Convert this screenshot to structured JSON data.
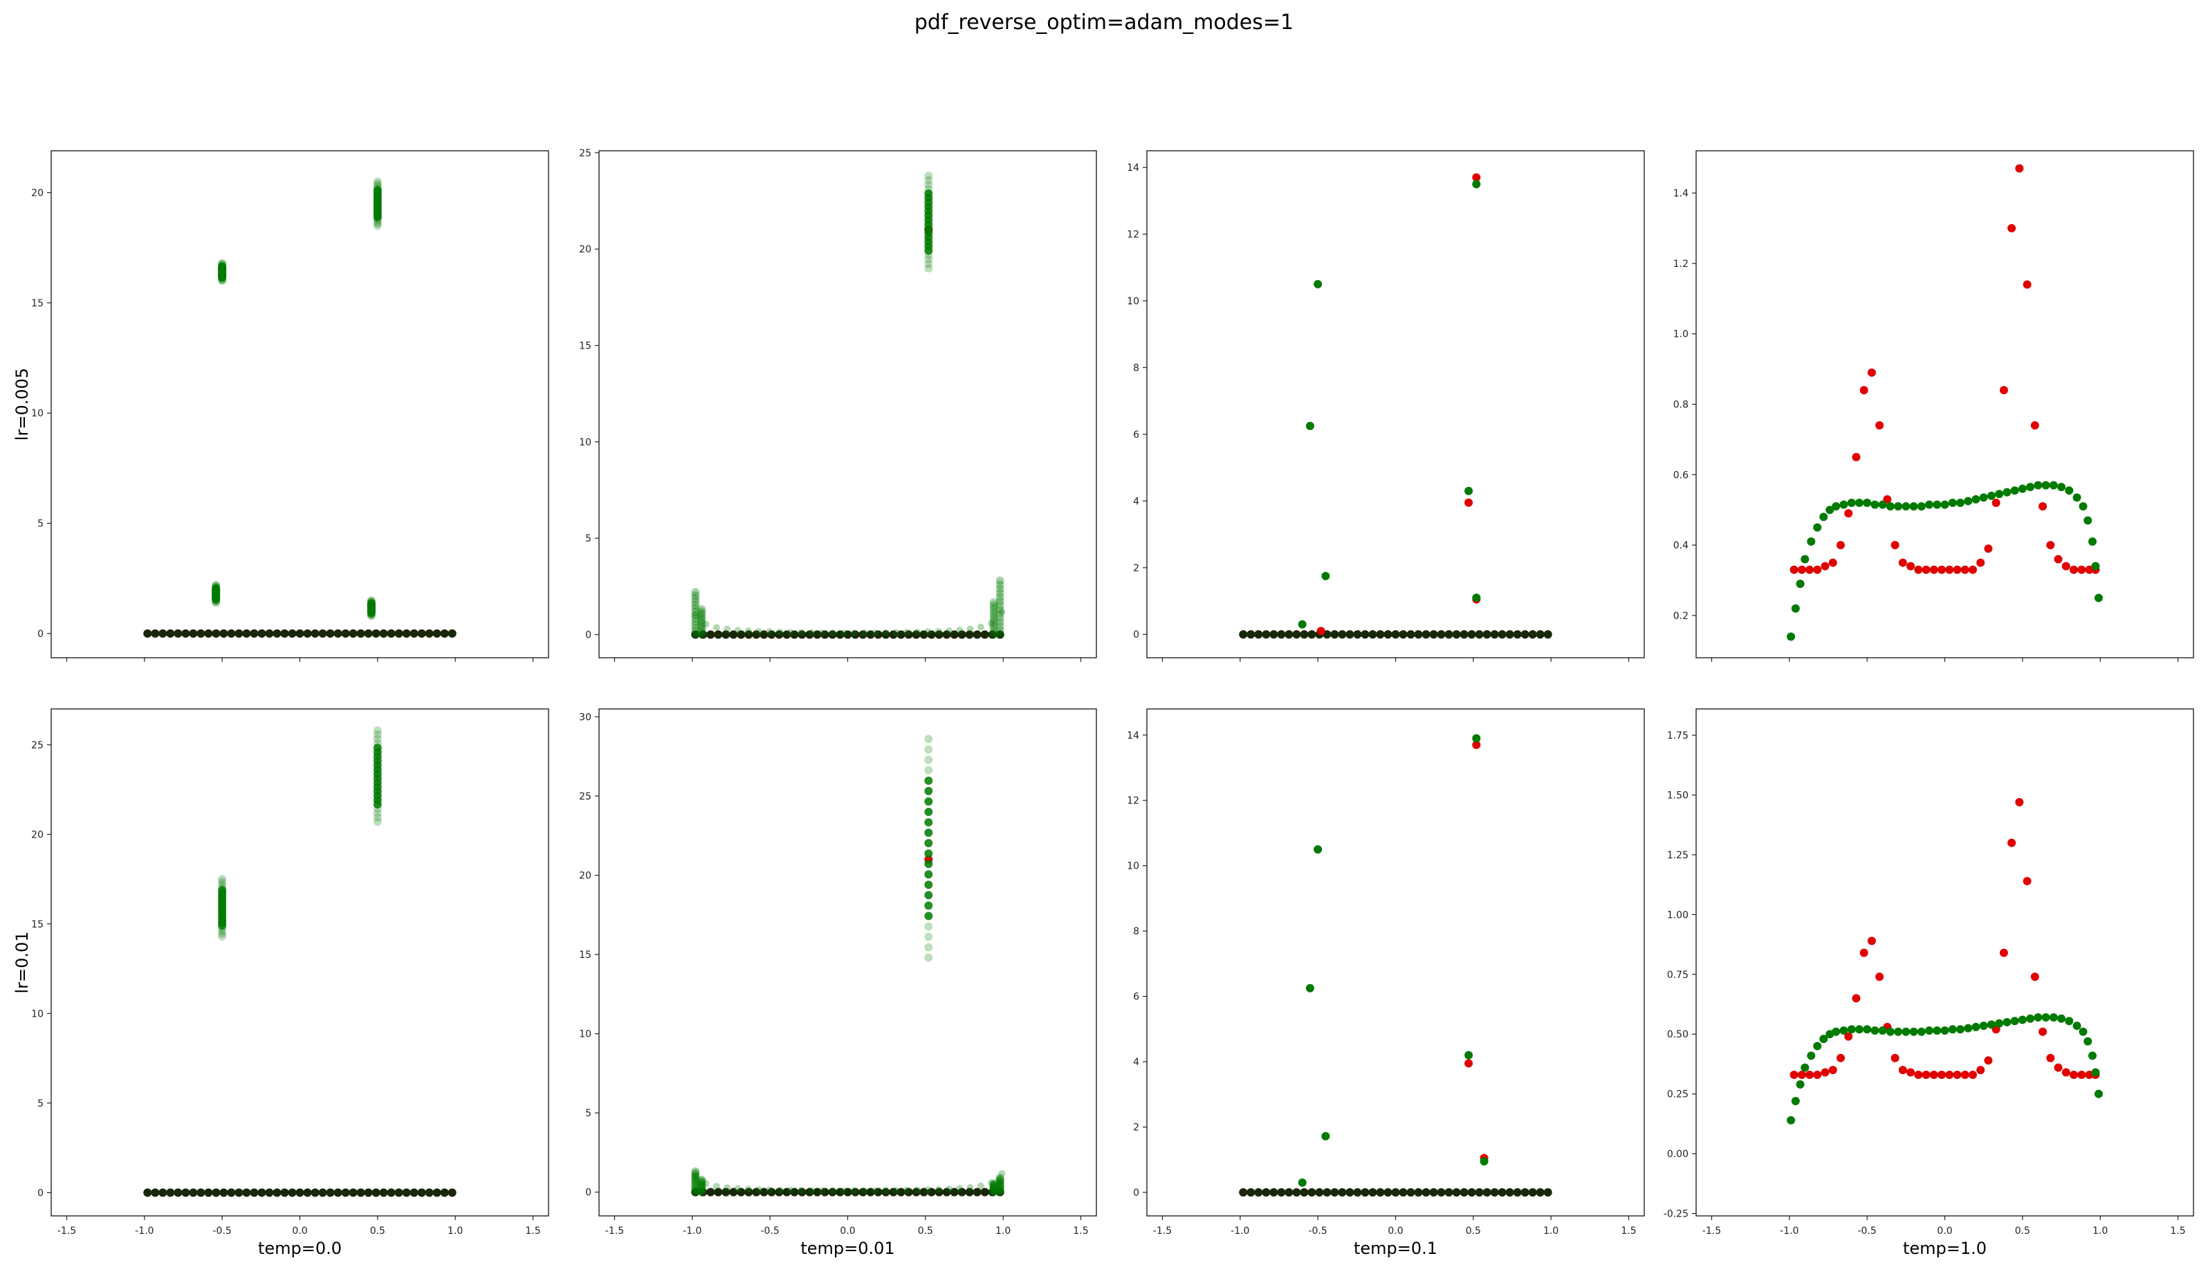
{
  "figure": {
    "suptitle": "pdf_reverse_optim=adam_modes=1"
  },
  "colors": {
    "target": "#e00000",
    "model": "#007a00",
    "dark": "#0b2a0b",
    "faint": "#9fc59f"
  },
  "chart_data": [
    {
      "type": "scatter",
      "row": 0,
      "col": 0,
      "ylabel": "lr=0.005",
      "xlabel": "",
      "xlim": [
        -1.6,
        1.6
      ],
      "ylim": [
        -1.1,
        21.9
      ],
      "xticks": [
        -1.5,
        -1.0,
        -0.5,
        0.0,
        0.5,
        1.0,
        1.5
      ],
      "xtick_labels_shown": false,
      "yticks": [
        0,
        5,
        10,
        15,
        20
      ],
      "ytick_labels": [
        "0",
        "5",
        "10",
        "15",
        "20"
      ],
      "series": [
        {
          "role": "target",
          "baseline": 0.0,
          "x_range": [
            -0.98,
            0.98
          ],
          "n": 41
        },
        {
          "role": "model_clusters",
          "clusters": [
            {
              "x": -0.5,
              "y": [
                16.0,
                16.8
              ]
            },
            {
              "x": 0.5,
              "y": [
                18.5,
                20.5
              ]
            },
            {
              "x": -0.54,
              "y": [
                1.4,
                2.2
              ]
            },
            {
              "x": 0.46,
              "y": [
                0.8,
                1.5
              ]
            }
          ]
        }
      ]
    },
    {
      "type": "scatter",
      "row": 0,
      "col": 1,
      "ylabel": "",
      "xlabel": "",
      "xlim": [
        -1.6,
        1.6
      ],
      "ylim": [
        -1.2,
        25.1
      ],
      "xticks": [
        -1.5,
        -1.0,
        -0.5,
        0.0,
        0.5,
        1.0,
        1.5
      ],
      "xtick_labels_shown": false,
      "yticks": [
        0,
        5,
        10,
        15,
        20,
        25
      ],
      "ytick_labels": [
        "0",
        "5",
        "10",
        "15",
        "20",
        "25"
      ],
      "series": [
        {
          "role": "target",
          "baseline": 0.0,
          "x_range": [
            -0.98,
            0.98
          ],
          "n": 41,
          "spikes": [
            {
              "x": 0.52,
              "y": 21.0
            }
          ]
        },
        {
          "role": "model_clusters",
          "clusters": [
            {
              "x": 0.52,
              "y": [
                19.0,
                23.8
              ]
            }
          ],
          "edge_rise": {
            "left_x": -0.98,
            "left_y": 2.2,
            "right_x": 0.98,
            "right_y": 2.8
          }
        }
      ]
    },
    {
      "type": "scatter",
      "row": 0,
      "col": 2,
      "ylabel": "",
      "xlabel": "",
      "xlim": [
        -1.6,
        1.6
      ],
      "ylim": [
        -0.7,
        14.5
      ],
      "xticks": [
        -1.5,
        -1.0,
        -0.5,
        0.0,
        0.5,
        1.0,
        1.5
      ],
      "xtick_labels_shown": false,
      "yticks": [
        0,
        2,
        4,
        6,
        8,
        10,
        12,
        14
      ],
      "ytick_labels": [
        "0",
        "2",
        "4",
        "6",
        "8",
        "10",
        "12",
        "14"
      ],
      "series": [
        {
          "role": "target",
          "baseline": 0.0,
          "x_range": [
            -0.98,
            0.98
          ],
          "n": 41,
          "spikes": [
            {
              "x": 0.52,
              "y": 13.7
            },
            {
              "x": 0.47,
              "y": 3.95
            },
            {
              "x": 0.52,
              "y": 1.05
            },
            {
              "x": -0.48,
              "y": 0.1
            }
          ]
        },
        {
          "role": "model_points",
          "points": [
            {
              "x": -0.5,
              "y": 10.5
            },
            {
              "x": -0.55,
              "y": 6.25
            },
            {
              "x": -0.45,
              "y": 1.75
            },
            {
              "x": -0.6,
              "y": 0.3
            },
            {
              "x": 0.52,
              "y": 13.5
            },
            {
              "x": 0.47,
              "y": 4.3
            },
            {
              "x": 0.52,
              "y": 1.1
            }
          ]
        }
      ]
    },
    {
      "type": "scatter",
      "row": 0,
      "col": 3,
      "ylabel": "",
      "xlabel": "",
      "xlim": [
        -1.6,
        1.6
      ],
      "ylim": [
        0.08,
        1.52
      ],
      "xticks": [
        -1.5,
        -1.0,
        -0.5,
        0.0,
        0.5,
        1.0,
        1.5
      ],
      "xtick_labels_shown": false,
      "yticks": [
        0.2,
        0.4,
        0.6,
        0.8,
        1.0,
        1.2,
        1.4
      ],
      "ytick_labels": [
        "0.2",
        "0.4",
        "0.6",
        "0.8",
        "1.0",
        "1.2",
        "1.4"
      ],
      "series": [
        {
          "role": "target",
          "points": [
            {
              "x": -0.97,
              "y": 0.33
            },
            {
              "x": -0.92,
              "y": 0.33
            },
            {
              "x": -0.87,
              "y": 0.33
            },
            {
              "x": -0.82,
              "y": 0.33
            },
            {
              "x": -0.77,
              "y": 0.34
            },
            {
              "x": -0.72,
              "y": 0.35
            },
            {
              "x": -0.67,
              "y": 0.4
            },
            {
              "x": -0.62,
              "y": 0.49
            },
            {
              "x": -0.57,
              "y": 0.65
            },
            {
              "x": -0.52,
              "y": 0.84
            },
            {
              "x": -0.47,
              "y": 0.89
            },
            {
              "x": -0.42,
              "y": 0.74
            },
            {
              "x": -0.37,
              "y": 0.53
            },
            {
              "x": -0.32,
              "y": 0.4
            },
            {
              "x": -0.27,
              "y": 0.35
            },
            {
              "x": -0.22,
              "y": 0.34
            },
            {
              "x": -0.17,
              "y": 0.33
            },
            {
              "x": -0.12,
              "y": 0.33
            },
            {
              "x": -0.07,
              "y": 0.33
            },
            {
              "x": -0.02,
              "y": 0.33
            },
            {
              "x": 0.03,
              "y": 0.33
            },
            {
              "x": 0.08,
              "y": 0.33
            },
            {
              "x": 0.13,
              "y": 0.33
            },
            {
              "x": 0.18,
              "y": 0.33
            },
            {
              "x": 0.23,
              "y": 0.35
            },
            {
              "x": 0.28,
              "y": 0.39
            },
            {
              "x": 0.33,
              "y": 0.52
            },
            {
              "x": 0.38,
              "y": 0.84
            },
            {
              "x": 0.43,
              "y": 1.3
            },
            {
              "x": 0.48,
              "y": 1.47
            },
            {
              "x": 0.53,
              "y": 1.14
            },
            {
              "x": 0.58,
              "y": 0.74
            },
            {
              "x": 0.63,
              "y": 0.51
            },
            {
              "x": 0.68,
              "y": 0.4
            },
            {
              "x": 0.73,
              "y": 0.36
            },
            {
              "x": 0.78,
              "y": 0.34
            },
            {
              "x": 0.83,
              "y": 0.33
            },
            {
              "x": 0.88,
              "y": 0.33
            },
            {
              "x": 0.93,
              "y": 0.33
            },
            {
              "x": 0.97,
              "y": 0.33
            }
          ]
        },
        {
          "role": "model",
          "points": [
            {
              "x": -0.99,
              "y": 0.14
            },
            {
              "x": -0.96,
              "y": 0.22
            },
            {
              "x": -0.93,
              "y": 0.29
            },
            {
              "x": -0.9,
              "y": 0.36
            },
            {
              "x": -0.86,
              "y": 0.41
            },
            {
              "x": -0.82,
              "y": 0.45
            },
            {
              "x": -0.78,
              "y": 0.48
            },
            {
              "x": -0.74,
              "y": 0.5
            },
            {
              "x": -0.7,
              "y": 0.51
            },
            {
              "x": -0.65,
              "y": 0.515
            },
            {
              "x": -0.6,
              "y": 0.52
            },
            {
              "x": -0.55,
              "y": 0.52
            },
            {
              "x": -0.5,
              "y": 0.52
            },
            {
              "x": -0.45,
              "y": 0.515
            },
            {
              "x": -0.4,
              "y": 0.515
            },
            {
              "x": -0.35,
              "y": 0.51
            },
            {
              "x": -0.3,
              "y": 0.51
            },
            {
              "x": -0.25,
              "y": 0.51
            },
            {
              "x": -0.2,
              "y": 0.51
            },
            {
              "x": -0.15,
              "y": 0.51
            },
            {
              "x": -0.1,
              "y": 0.515
            },
            {
              "x": -0.05,
              "y": 0.515
            },
            {
              "x": 0.0,
              "y": 0.515
            },
            {
              "x": 0.05,
              "y": 0.52
            },
            {
              "x": 0.1,
              "y": 0.52
            },
            {
              "x": 0.15,
              "y": 0.525
            },
            {
              "x": 0.2,
              "y": 0.53
            },
            {
              "x": 0.25,
              "y": 0.535
            },
            {
              "x": 0.3,
              "y": 0.54
            },
            {
              "x": 0.35,
              "y": 0.545
            },
            {
              "x": 0.4,
              "y": 0.55
            },
            {
              "x": 0.45,
              "y": 0.555
            },
            {
              "x": 0.5,
              "y": 0.56
            },
            {
              "x": 0.55,
              "y": 0.565
            },
            {
              "x": 0.6,
              "y": 0.57
            },
            {
              "x": 0.65,
              "y": 0.57
            },
            {
              "x": 0.7,
              "y": 0.57
            },
            {
              "x": 0.75,
              "y": 0.565
            },
            {
              "x": 0.8,
              "y": 0.555
            },
            {
              "x": 0.85,
              "y": 0.535
            },
            {
              "x": 0.89,
              "y": 0.51
            },
            {
              "x": 0.92,
              "y": 0.47
            },
            {
              "x": 0.95,
              "y": 0.41
            },
            {
              "x": 0.97,
              "y": 0.34
            },
            {
              "x": 0.99,
              "y": 0.25
            }
          ]
        }
      ]
    },
    {
      "type": "scatter",
      "row": 1,
      "col": 0,
      "ylabel": "lr=0.01",
      "xlabel": "temp=0.0",
      "xlim": [
        -1.6,
        1.6
      ],
      "ylim": [
        -1.3,
        27.0
      ],
      "xticks": [
        -1.5,
        -1.0,
        -0.5,
        0.0,
        0.5,
        1.0,
        1.5
      ],
      "xtick_labels": [
        "-1.5",
        "-1.0",
        "-0.5",
        "0.0",
        "0.5",
        "1.0",
        "1.5"
      ],
      "yticks": [
        0,
        5,
        10,
        15,
        20,
        25
      ],
      "ytick_labels": [
        "0",
        "5",
        "10",
        "15",
        "20",
        "25"
      ],
      "series": [
        {
          "role": "target",
          "baseline": 0.0,
          "x_range": [
            -0.98,
            0.98
          ],
          "n": 41
        },
        {
          "role": "model_clusters",
          "clusters": [
            {
              "x": -0.5,
              "y": [
                14.3,
                17.5
              ]
            },
            {
              "x": 0.5,
              "y": [
                20.7,
                25.8
              ]
            }
          ]
        }
      ]
    },
    {
      "type": "scatter",
      "row": 1,
      "col": 1,
      "ylabel": "",
      "xlabel": "temp=0.01",
      "xlim": [
        -1.6,
        1.6
      ],
      "ylim": [
        -1.5,
        30.5
      ],
      "xticks": [
        -1.5,
        -1.0,
        -0.5,
        0.0,
        0.5,
        1.0,
        1.5
      ],
      "xtick_labels": [
        "-1.5",
        "-1.0",
        "-0.5",
        "0.0",
        "0.5",
        "1.0",
        "1.5"
      ],
      "yticks": [
        0,
        5,
        10,
        15,
        20,
        25,
        30
      ],
      "ytick_labels": [
        "0",
        "5",
        "10",
        "15",
        "20",
        "25",
        "30"
      ],
      "series": [
        {
          "role": "target",
          "baseline": 0.0,
          "x_range": [
            -0.98,
            0.98
          ],
          "n": 41,
          "spikes": [
            {
              "x": 0.52,
              "y": 21.0
            }
          ]
        },
        {
          "role": "model_clusters",
          "clusters": [
            {
              "x": 0.52,
              "y": [
                14.8,
                28.6
              ]
            }
          ],
          "edge_rise": {
            "left_x": -0.98,
            "left_y": 1.3,
            "right_x": 0.98,
            "right_y": 0.9
          }
        }
      ]
    },
    {
      "type": "scatter",
      "row": 1,
      "col": 2,
      "ylabel": "",
      "xlabel": "temp=0.1",
      "xlim": [
        -1.6,
        1.6
      ],
      "ylim": [
        -0.72,
        14.8
      ],
      "xticks": [
        -1.5,
        -1.0,
        -0.5,
        0.0,
        0.5,
        1.0,
        1.5
      ],
      "xtick_labels": [
        "-1.5",
        "-1.0",
        "-0.5",
        "0.0",
        "0.5",
        "1.0",
        "1.5"
      ],
      "yticks": [
        0,
        2,
        4,
        6,
        8,
        10,
        12,
        14
      ],
      "ytick_labels": [
        "0",
        "2",
        "4",
        "6",
        "8",
        "10",
        "12",
        "14"
      ],
      "series": [
        {
          "role": "target",
          "baseline": 0.0,
          "x_range": [
            -0.98,
            0.98
          ],
          "n": 41,
          "spikes": [
            {
              "x": 0.52,
              "y": 13.7
            },
            {
              "x": 0.47,
              "y": 3.95
            },
            {
              "x": 0.57,
              "y": 1.05
            }
          ]
        },
        {
          "role": "model_points",
          "points": [
            {
              "x": -0.5,
              "y": 10.5
            },
            {
              "x": -0.55,
              "y": 6.25
            },
            {
              "x": -0.45,
              "y": 1.72
            },
            {
              "x": -0.6,
              "y": 0.3
            },
            {
              "x": 0.52,
              "y": 13.9
            },
            {
              "x": 0.47,
              "y": 4.2
            },
            {
              "x": 0.57,
              "y": 0.95
            }
          ]
        }
      ]
    },
    {
      "type": "scatter",
      "row": 1,
      "col": 3,
      "ylabel": "",
      "xlabel": "temp=1.0",
      "xlim": [
        -1.6,
        1.6
      ],
      "ylim": [
        -0.26,
        1.86
      ],
      "xticks": [
        -1.5,
        -1.0,
        -0.5,
        0.0,
        0.5,
        1.0,
        1.5
      ],
      "xtick_labels": [
        "-1.5",
        "-1.0",
        "-0.5",
        "0.0",
        "0.5",
        "1.0",
        "1.5"
      ],
      "yticks": [
        -0.25,
        0.0,
        0.25,
        0.5,
        0.75,
        1.0,
        1.25,
        1.5,
        1.75
      ],
      "ytick_labels": [
        "-0.25",
        "0.00",
        "0.25",
        "0.50",
        "0.75",
        "1.00",
        "1.25",
        "1.50",
        "1.75"
      ],
      "series": [
        {
          "role": "target",
          "same_as": "row0col3"
        },
        {
          "role": "model",
          "same_as": "row0col3"
        }
      ]
    }
  ]
}
